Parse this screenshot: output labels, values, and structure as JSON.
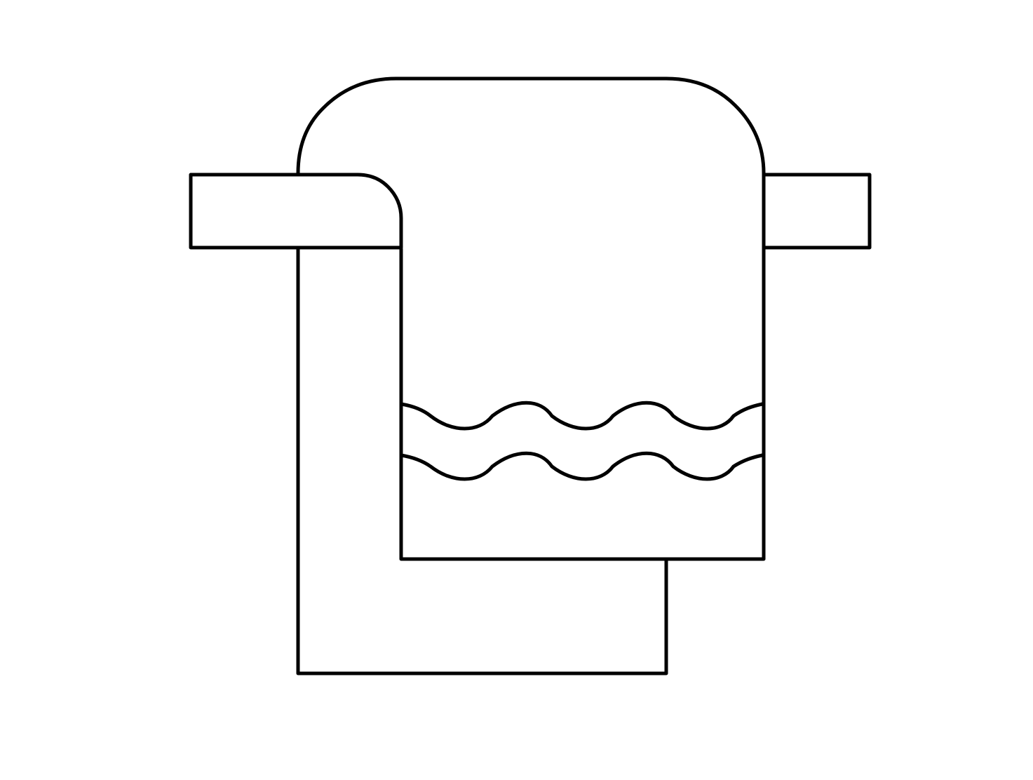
{
  "image": {
    "icon": "towel-on-rack-icon",
    "style": "monochrome line art",
    "colors": {
      "background": "#ffffff",
      "stroke": "#000000"
    }
  }
}
